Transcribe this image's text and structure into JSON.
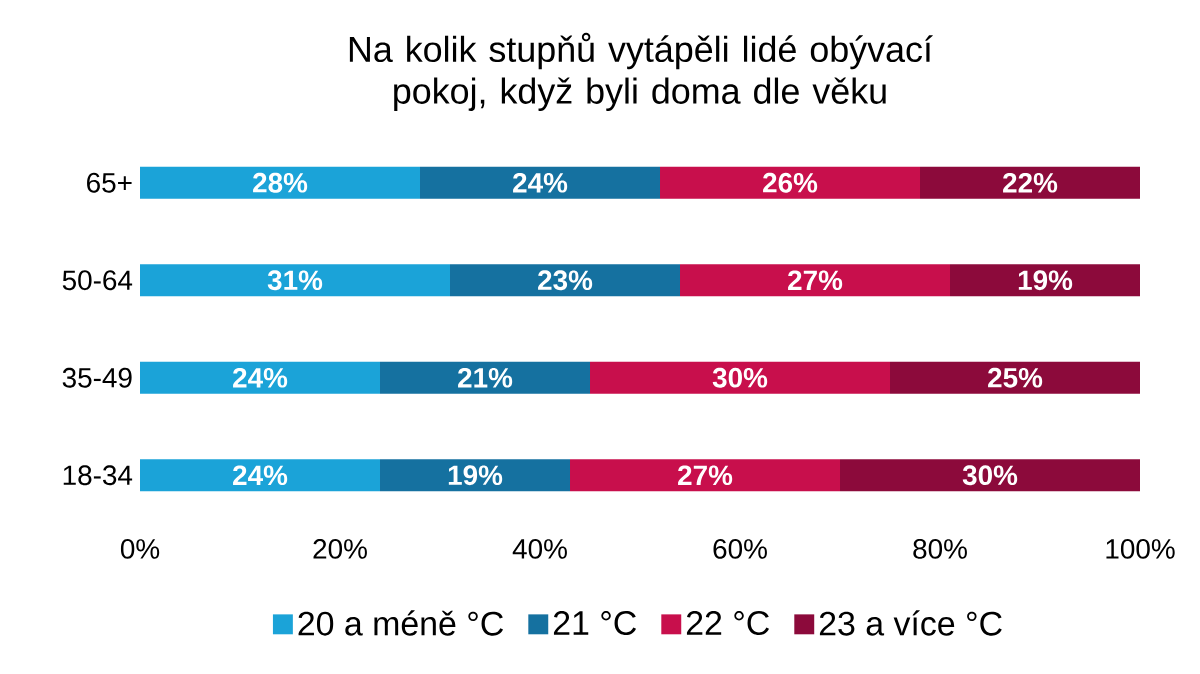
{
  "chart_data": {
    "type": "bar",
    "orientation": "horizontal",
    "stacked": true,
    "title": "Na kolik stupňů vytápěli lidé obývací pokoj, když byli doma dle věku",
    "categories": [
      "65+",
      "50-64",
      "35-49",
      "18-34"
    ],
    "series": [
      {
        "name": "20 a méně °C",
        "color": "#1ba3d8",
        "values": [
          28,
          31,
          24,
          24
        ],
        "value_labels": [
          "28%",
          "31%",
          "24%",
          "24%"
        ]
      },
      {
        "name": "21 °C",
        "color": "#1571a0",
        "values": [
          24,
          23,
          21,
          19
        ],
        "value_labels": [
          "24%",
          "23%",
          "21%",
          "19%"
        ]
      },
      {
        "name": "22 °C",
        "color": "#c80f4c",
        "values": [
          26,
          27,
          30,
          27
        ],
        "value_labels": [
          "26%",
          "27%",
          "30%",
          "27%"
        ]
      },
      {
        "name": "23 a více °C",
        "color": "#8c0a3b",
        "values": [
          22,
          19,
          25,
          30
        ],
        "value_labels": [
          "22%",
          "19%",
          "25%",
          "30%"
        ]
      }
    ],
    "xlim": [
      0,
      100
    ],
    "xticks": [
      {
        "value": 0,
        "label": "0%"
      },
      {
        "value": 20,
        "label": "20%"
      },
      {
        "value": 40,
        "label": "40%"
      },
      {
        "value": 60,
        "label": "60%"
      },
      {
        "value": 80,
        "label": "80%"
      },
      {
        "value": 100,
        "label": "100%"
      }
    ],
    "grid": false,
    "legend": "bottom"
  }
}
